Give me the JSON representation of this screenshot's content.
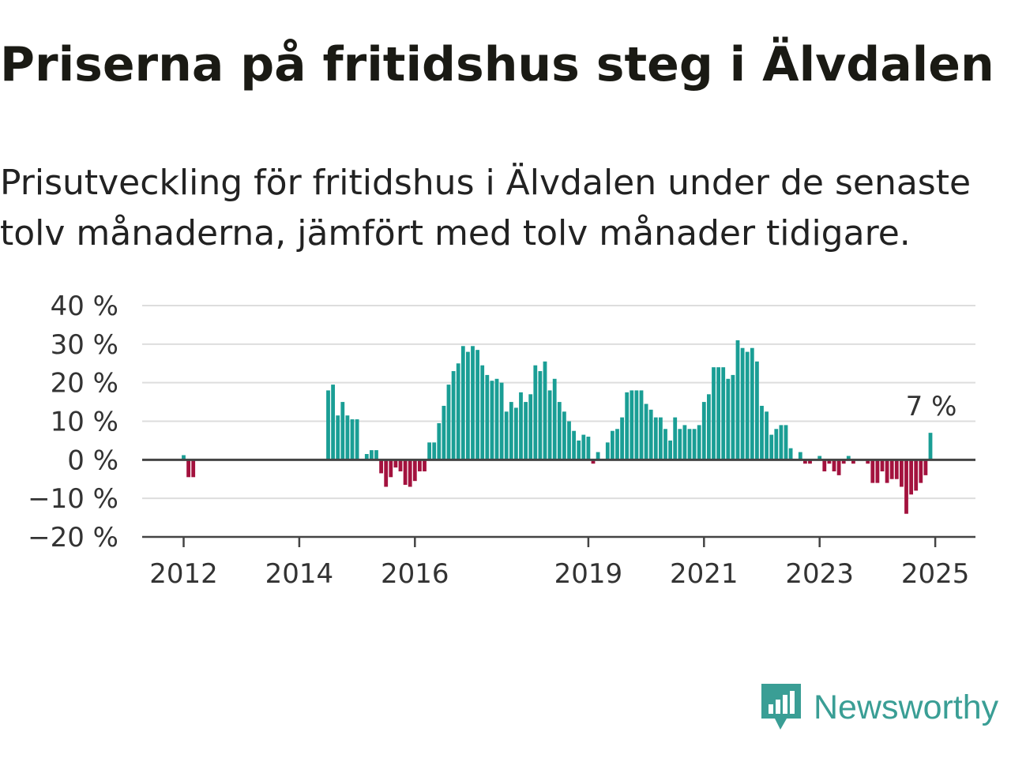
{
  "title": "Priserna på fritidshus steg i Älvdalen",
  "subtitle": "Prisutveckling för fritidshus i Älvdalen under de senaste tolv månaderna, jämfört med tolv månader tidigare.",
  "brand": {
    "name": "Newsworthy",
    "icon": "newsworthy-logo-icon",
    "color": "#3a9e95"
  },
  "chart_data": {
    "type": "bar",
    "x_unit": "month",
    "start": "2012-01",
    "y_ticks": [
      40,
      30,
      20,
      10,
      0,
      -10,
      -20
    ],
    "y_tick_suffix": " %",
    "ylim": [
      -20,
      40
    ],
    "x_tick_years": [
      "2012",
      "2014",
      "2016",
      "2019",
      "2021",
      "2023",
      "2025"
    ],
    "grid": true,
    "positive_color": "#1a9e95",
    "negative_color": "#a3123e",
    "last_value_label": "7 %",
    "values": [
      1.2,
      -4.5,
      -4.5,
      0,
      0,
      0,
      0,
      0,
      0,
      0,
      0,
      0,
      0,
      0,
      0,
      0,
      0,
      0,
      0,
      0,
      0,
      0,
      0,
      0,
      0,
      0,
      0,
      0,
      0,
      0,
      18,
      19.5,
      11.5,
      15,
      11.5,
      10.5,
      10.5,
      0,
      1.5,
      2.5,
      2.5,
      -3.5,
      -7,
      -4.5,
      -2,
      -3,
      -6.5,
      -7,
      -5.5,
      -3,
      -3,
      4.5,
      4.5,
      9.5,
      14,
      19.5,
      23,
      25,
      29.5,
      28,
      29.5,
      28.5,
      24.5,
      22,
      20.5,
      21,
      20,
      12.5,
      15,
      13.5,
      17.5,
      15,
      17,
      24.5,
      23,
      25.5,
      18,
      21,
      15,
      12.5,
      10,
      7.5,
      5,
      6.5,
      6,
      -1,
      2,
      0,
      4.5,
      7.5,
      8,
      11,
      17.5,
      18,
      18,
      18,
      14.5,
      13,
      11,
      11,
      8,
      5,
      11,
      8,
      9,
      8,
      8,
      9,
      15,
      17,
      24,
      24,
      24,
      21,
      22,
      31,
      29,
      28,
      29,
      25.5,
      14,
      12.5,
      6.5,
      8,
      9,
      9,
      3,
      0,
      2,
      -1,
      -1,
      0,
      1,
      -3,
      -1,
      -3,
      -4,
      -1,
      1,
      -1,
      0,
      0,
      -1,
      -6,
      -6,
      -3,
      -6,
      -5,
      -5,
      -7,
      -14,
      -9,
      -8,
      -6,
      -4,
      7
    ]
  }
}
